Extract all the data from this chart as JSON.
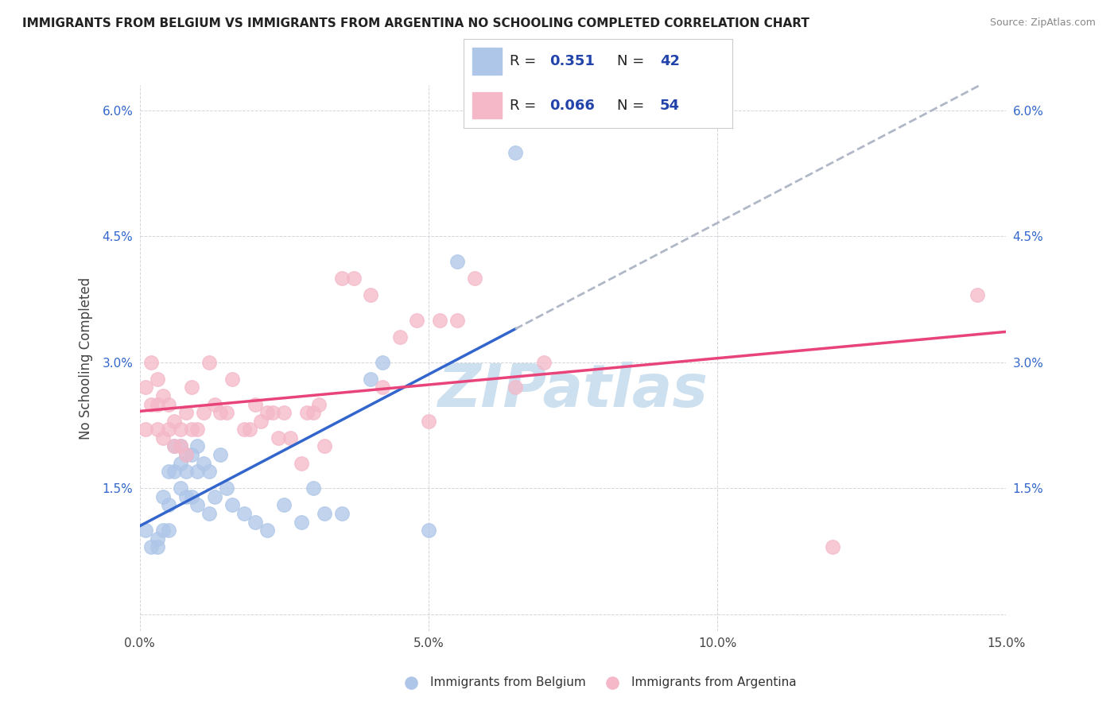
{
  "title": "IMMIGRANTS FROM BELGIUM VS IMMIGRANTS FROM ARGENTINA NO SCHOOLING COMPLETED CORRELATION CHART",
  "source": "Source: ZipAtlas.com",
  "ylabel": "No Schooling Completed",
  "xlim": [
    0.0,
    0.15
  ],
  "ylim": [
    -0.002,
    0.063
  ],
  "xticks": [
    0.0,
    0.05,
    0.1,
    0.15
  ],
  "xtick_labels": [
    "0.0%",
    "5.0%",
    "10.0%",
    "15.0%"
  ],
  "yticks": [
    0.0,
    0.015,
    0.03,
    0.045,
    0.06
  ],
  "ytick_labels": [
    "",
    "1.5%",
    "3.0%",
    "4.5%",
    "6.0%"
  ],
  "belgium_R": 0.351,
  "belgium_N": 42,
  "argentina_R": 0.066,
  "argentina_N": 54,
  "belgium_color": "#aec6e8",
  "argentina_color": "#f4b8c8",
  "belgium_line_color": "#3366cc",
  "argentina_line_color": "#e8447a",
  "dashed_line_color": "#b0b8c8",
  "watermark_text": "ZIPatlas",
  "watermark_color": "#cde0f0",
  "background_color": "#ffffff",
  "grid_color": "#d0d0d8",
  "belgium_x": [
    0.001,
    0.002,
    0.003,
    0.003,
    0.004,
    0.004,
    0.005,
    0.005,
    0.005,
    0.006,
    0.006,
    0.007,
    0.007,
    0.007,
    0.008,
    0.008,
    0.008,
    0.009,
    0.009,
    0.01,
    0.01,
    0.01,
    0.011,
    0.012,
    0.012,
    0.013,
    0.014,
    0.015,
    0.016,
    0.018,
    0.02,
    0.022,
    0.025,
    0.028,
    0.03,
    0.032,
    0.035,
    0.04,
    0.042,
    0.05,
    0.055,
    0.065
  ],
  "belgium_y": [
    0.01,
    0.008,
    0.009,
    0.008,
    0.014,
    0.01,
    0.017,
    0.013,
    0.01,
    0.02,
    0.017,
    0.02,
    0.018,
    0.015,
    0.019,
    0.017,
    0.014,
    0.019,
    0.014,
    0.02,
    0.017,
    0.013,
    0.018,
    0.017,
    0.012,
    0.014,
    0.019,
    0.015,
    0.013,
    0.012,
    0.011,
    0.01,
    0.013,
    0.011,
    0.015,
    0.012,
    0.012,
    0.028,
    0.03,
    0.01,
    0.042,
    0.055
  ],
  "argentina_x": [
    0.001,
    0.001,
    0.002,
    0.002,
    0.003,
    0.003,
    0.003,
    0.004,
    0.004,
    0.005,
    0.005,
    0.006,
    0.006,
    0.007,
    0.007,
    0.008,
    0.008,
    0.009,
    0.009,
    0.01,
    0.011,
    0.012,
    0.013,
    0.014,
    0.015,
    0.016,
    0.018,
    0.019,
    0.02,
    0.021,
    0.022,
    0.023,
    0.024,
    0.025,
    0.026,
    0.028,
    0.029,
    0.03,
    0.031,
    0.032,
    0.035,
    0.037,
    0.04,
    0.042,
    0.045,
    0.048,
    0.05,
    0.052,
    0.055,
    0.058,
    0.065,
    0.07,
    0.12,
    0.145
  ],
  "argentina_y": [
    0.022,
    0.027,
    0.025,
    0.03,
    0.025,
    0.028,
    0.022,
    0.026,
    0.021,
    0.025,
    0.022,
    0.023,
    0.02,
    0.022,
    0.02,
    0.024,
    0.019,
    0.027,
    0.022,
    0.022,
    0.024,
    0.03,
    0.025,
    0.024,
    0.024,
    0.028,
    0.022,
    0.022,
    0.025,
    0.023,
    0.024,
    0.024,
    0.021,
    0.024,
    0.021,
    0.018,
    0.024,
    0.024,
    0.025,
    0.02,
    0.04,
    0.04,
    0.038,
    0.027,
    0.033,
    0.035,
    0.023,
    0.035,
    0.035,
    0.04,
    0.027,
    0.03,
    0.008,
    0.038
  ],
  "legend_color": "#2244aa",
  "title_color": "#222222",
  "ytick_color": "#3366cc",
  "source_color": "#888888"
}
